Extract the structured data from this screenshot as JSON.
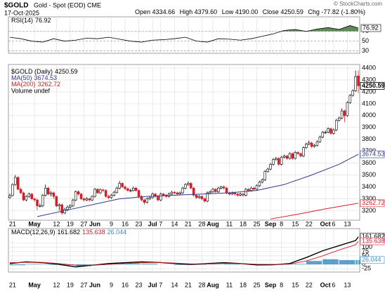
{
  "chart_data": {
    "type": "candlestick",
    "symbol": "$GOLD",
    "title": "Gold - Spot (EOD) CME",
    "date": "17-Oct-2025",
    "credit": "© StockCharts.com",
    "quote": [
      {
        "label": "Open",
        "value": "4334.66"
      },
      {
        "label": "High",
        "value": "4379.60"
      },
      {
        "label": "Low",
        "value": "4190.00"
      },
      {
        "label": "Close",
        "value": "4250.59"
      },
      {
        "label": "Chg",
        "value": "-77.82 (-1.80%)"
      }
    ],
    "price_label": "$GOLD (Daily)",
    "volume_label": "Volume undef",
    "up_color": "#000000",
    "down_color": "#d0202a",
    "xlim": [
      -0.5,
      127.5
    ],
    "xticks": [
      {
        "value": 1,
        "label": "21"
      },
      {
        "value": 9,
        "label": "May"
      },
      {
        "value": 17,
        "label": "12"
      },
      {
        "value": 22,
        "label": "19"
      },
      {
        "value": 27,
        "label": "27"
      },
      {
        "value": 31,
        "label": "Jun"
      },
      {
        "value": 37,
        "label": "9"
      },
      {
        "value": 42,
        "label": "16"
      },
      {
        "value": 47,
        "label": "23"
      },
      {
        "value": 52,
        "label": "Jul"
      },
      {
        "value": 55,
        "label": "7"
      },
      {
        "value": 60,
        "label": "14"
      },
      {
        "value": 65,
        "label": "21"
      },
      {
        "value": 70,
        "label": "28"
      },
      {
        "value": 74,
        "label": "Aug"
      },
      {
        "value": 80,
        "label": "11"
      },
      {
        "value": 85,
        "label": "18"
      },
      {
        "value": 90,
        "label": "25"
      },
      {
        "value": 95,
        "label": "Sep"
      },
      {
        "value": 99,
        "label": "8"
      },
      {
        "value": 104,
        "label": "15"
      },
      {
        "value": 109,
        "label": "22"
      },
      {
        "value": 115,
        "label": "Oct"
      },
      {
        "value": 118,
        "label": "6"
      },
      {
        "value": 123,
        "label": "13"
      }
    ],
    "ylim": [
      3120,
      4430
    ],
    "yticks": [
      3200,
      3300,
      3400,
      3500,
      3600,
      3700,
      3800,
      3900,
      4000,
      4100,
      4200,
      4300,
      4400
    ],
    "candles": [
      [
        3310,
        3345,
        3300,
        3327
      ],
      [
        3327,
        3430,
        3320,
        3420
      ],
      [
        3420,
        3500,
        3410,
        3480
      ],
      [
        3480,
        3490,
        3370,
        3380
      ],
      [
        3380,
        3395,
        3340,
        3350
      ],
      [
        3350,
        3360,
        3280,
        3290
      ],
      [
        3290,
        3330,
        3280,
        3320
      ],
      [
        3320,
        3352,
        3308,
        3340
      ],
      [
        3340,
        3350,
        3290,
        3300
      ],
      [
        3300,
        3310,
        3275,
        3290
      ],
      [
        3290,
        3300,
        3205,
        3240
      ],
      [
        3240,
        3260,
        3228,
        3240
      ],
      [
        3240,
        3340,
        3230,
        3330
      ],
      [
        3330,
        3420,
        3320,
        3390
      ],
      [
        3390,
        3400,
        3330,
        3340
      ],
      [
        3340,
        3365,
        3320,
        3350
      ],
      [
        3350,
        3360,
        3300,
        3320
      ],
      [
        3320,
        3325,
        3230,
        3240
      ],
      [
        3240,
        3262,
        3200,
        3250
      ],
      [
        3250,
        3260,
        3165,
        3180
      ],
      [
        3180,
        3225,
        3170,
        3210
      ],
      [
        3210,
        3245,
        3195,
        3230
      ],
      [
        3230,
        3255,
        3215,
        3240
      ],
      [
        3240,
        3300,
        3230,
        3290
      ],
      [
        3290,
        3370,
        3280,
        3360
      ],
      [
        3360,
        3372,
        3325,
        3340
      ],
      [
        3340,
        3350,
        3290,
        3300
      ],
      [
        3300,
        3312,
        3278,
        3290
      ],
      [
        3290,
        3315,
        3280,
        3300
      ],
      [
        3300,
        3310,
        3275,
        3290
      ],
      [
        3290,
        3330,
        3280,
        3320
      ],
      [
        3320,
        3392,
        3310,
        3380
      ],
      [
        3380,
        3390,
        3340,
        3350
      ],
      [
        3350,
        3388,
        3340,
        3375
      ],
      [
        3375,
        3385,
        3355,
        3370
      ],
      [
        3370,
        3380,
        3310,
        3320
      ],
      [
        3320,
        3332,
        3298,
        3310
      ],
      [
        3310,
        3342,
        3300,
        3330
      ],
      [
        3330,
        3368,
        3320,
        3355
      ],
      [
        3355,
        3402,
        3345,
        3390
      ],
      [
        3390,
        3450,
        3380,
        3430
      ],
      [
        3430,
        3440,
        3390,
        3400
      ],
      [
        3400,
        3412,
        3372,
        3385
      ],
      [
        3385,
        3395,
        3358,
        3370
      ],
      [
        3370,
        3385,
        3355,
        3370
      ],
      [
        3370,
        3402,
        3360,
        3390
      ],
      [
        3390,
        3400,
        3358,
        3370
      ],
      [
        3370,
        3378,
        3305,
        3320
      ],
      [
        3320,
        3330,
        3278,
        3290
      ],
      [
        3290,
        3300,
        3248,
        3270
      ],
      [
        3270,
        3312,
        3260,
        3300
      ],
      [
        3300,
        3322,
        3288,
        3310
      ],
      [
        3310,
        3352,
        3300,
        3340
      ],
      [
        3340,
        3350,
        3308,
        3320
      ],
      [
        3320,
        3330,
        3278,
        3290
      ],
      [
        3290,
        3352,
        3280,
        3340
      ],
      [
        3340,
        3350,
        3318,
        3330
      ],
      [
        3330,
        3340,
        3308,
        3320
      ],
      [
        3320,
        3352,
        3310,
        3340
      ],
      [
        3340,
        3368,
        3330,
        3355
      ],
      [
        3355,
        3365,
        3338,
        3350
      ],
      [
        3350,
        3360,
        3328,
        3340
      ],
      [
        3340,
        3362,
        3330,
        3350
      ],
      [
        3350,
        3402,
        3340,
        3390
      ],
      [
        3390,
        3432,
        3380,
        3420
      ],
      [
        3420,
        3445,
        3410,
        3430
      ],
      [
        3430,
        3440,
        3380,
        3390
      ],
      [
        3390,
        3400,
        3318,
        3330
      ],
      [
        3330,
        3340,
        3298,
        3310
      ],
      [
        3310,
        3332,
        3300,
        3320
      ],
      [
        3320,
        3330,
        3288,
        3300
      ],
      [
        3300,
        3310,
        3268,
        3280
      ],
      [
        3280,
        3362,
        3270,
        3350
      ],
      [
        3350,
        3372,
        3340,
        3360
      ],
      [
        3360,
        3392,
        3350,
        3380
      ],
      [
        3380,
        3390,
        3348,
        3360
      ],
      [
        3360,
        3402,
        3350,
        3390
      ],
      [
        3390,
        3410,
        3380,
        3400
      ],
      [
        3400,
        3412,
        3378,
        3390
      ],
      [
        3390,
        3400,
        3338,
        3350
      ],
      [
        3350,
        3360,
        3328,
        3340
      ],
      [
        3340,
        3362,
        3330,
        3350
      ],
      [
        3350,
        3360,
        3328,
        3340
      ],
      [
        3340,
        3350,
        3318,
        3330
      ],
      [
        3330,
        3352,
        3320,
        3340
      ],
      [
        3340,
        3350,
        3318,
        3330
      ],
      [
        3330,
        3392,
        3320,
        3380
      ],
      [
        3380,
        3390,
        3358,
        3370
      ],
      [
        3370,
        3402,
        3360,
        3390
      ],
      [
        3390,
        3400,
        3368,
        3380
      ],
      [
        3380,
        3422,
        3370,
        3410
      ],
      [
        3410,
        3452,
        3400,
        3440
      ],
      [
        3440,
        3472,
        3430,
        3460
      ],
      [
        3460,
        3542,
        3450,
        3530
      ],
      [
        3530,
        3562,
        3520,
        3550
      ],
      [
        3550,
        3602,
        3540,
        3590
      ],
      [
        3590,
        3642,
        3580,
        3630
      ],
      [
        3630,
        3652,
        3620,
        3640
      ],
      [
        3640,
        3650,
        3578,
        3590
      ],
      [
        3590,
        3662,
        3580,
        3650
      ],
      [
        3650,
        3672,
        3640,
        3660
      ],
      [
        3660,
        3670,
        3628,
        3640
      ],
      [
        3640,
        3692,
        3630,
        3680
      ],
      [
        3680,
        3690,
        3628,
        3640
      ],
      [
        3640,
        3702,
        3630,
        3690
      ],
      [
        3690,
        3700,
        3668,
        3680
      ],
      [
        3680,
        3690,
        3648,
        3660
      ],
      [
        3660,
        3742,
        3650,
        3730
      ],
      [
        3730,
        3772,
        3720,
        3760
      ],
      [
        3760,
        3790,
        3750,
        3770
      ],
      [
        3770,
        3780,
        3728,
        3740
      ],
      [
        3740,
        3762,
        3730,
        3750
      ],
      [
        3750,
        3792,
        3740,
        3780
      ],
      [
        3780,
        3832,
        3770,
        3820
      ],
      [
        3820,
        3872,
        3810,
        3860
      ],
      [
        3860,
        3875,
        3845,
        3860
      ],
      [
        3860,
        3902,
        3850,
        3890
      ],
      [
        3890,
        3900,
        3838,
        3850
      ],
      [
        3850,
        3892,
        3840,
        3880
      ],
      [
        3880,
        3972,
        3870,
        3960
      ],
      [
        3960,
        3992,
        3950,
        3980
      ],
      [
        3980,
        4060,
        3970,
        4040
      ],
      [
        4040,
        4050,
        3945,
        4000
      ],
      [
        4000,
        4122,
        3990,
        4110
      ],
      [
        4110,
        4182,
        4100,
        4170
      ],
      [
        4170,
        4222,
        4160,
        4210
      ],
      [
        4210,
        4380,
        4200,
        4328.41
      ],
      [
        4334.66,
        4379.6,
        4190,
        4250.59
      ]
    ],
    "series": [
      {
        "name": "MA(50)",
        "color": "#2e3a8c",
        "x": [
          10,
          20,
          30,
          40,
          50,
          60,
          70,
          80,
          90,
          100,
          110,
          120,
          127
        ],
        "values": [
          3150,
          3200,
          3250,
          3300,
          3320,
          3330,
          3340,
          3350,
          3370,
          3420,
          3500,
          3590,
          3674.53
        ]
      },
      {
        "name": "MA(200)",
        "color": "#d0202a",
        "x": [
          95,
          105,
          115,
          127
        ],
        "values": [
          3130,
          3170,
          3215,
          3262.72
        ]
      }
    ],
    "rsi": {
      "name": "RSI(14)",
      "color": "#000000",
      "fill": "#5e8a58",
      "ylim": [
        25,
        100
      ],
      "yticks": [
        30,
        50,
        70
      ],
      "threshold": 70,
      "x": [
        0,
        4,
        8,
        12,
        16,
        20,
        24,
        28,
        32,
        36,
        40,
        44,
        48,
        52,
        56,
        60,
        64,
        68,
        72,
        76,
        80,
        84,
        88,
        92,
        96,
        100,
        104,
        108,
        112,
        116,
        120,
        124,
        127
      ],
      "values": [
        58,
        55,
        50,
        48,
        55,
        50,
        52,
        56,
        55,
        58,
        54,
        50,
        48,
        52,
        53,
        55,
        58,
        50,
        48,
        55,
        54,
        52,
        55,
        60,
        65,
        72,
        74,
        70,
        75,
        78,
        74,
        82,
        76.92
      ]
    },
    "macd": {
      "name": "MACD(12,26,9)",
      "ylim": [
        -45,
        210
      ],
      "yticks": [
        -25,
        0,
        25,
        50,
        75,
        100,
        125
      ],
      "x": [
        0,
        6,
        12,
        18,
        24,
        30,
        36,
        42,
        48,
        54,
        60,
        66,
        72,
        78,
        84,
        90,
        96,
        102,
        108,
        114,
        120,
        126,
        127
      ],
      "series": [
        {
          "color": "#000000",
          "values": [
            5,
            15,
            10,
            0,
            -15,
            -5,
            5,
            10,
            15,
            12,
            5,
            0,
            5,
            10,
            5,
            -3,
            -2,
            5,
            40,
            80,
            110,
            140,
            161.682
          ]
        },
        {
          "color": "#d0202a",
          "values": [
            10,
            12,
            12,
            5,
            -5,
            -5,
            0,
            5,
            10,
            12,
            8,
            3,
            3,
            6,
            5,
            1,
            0,
            2,
            20,
            50,
            85,
            115,
            135.638
          ]
        },
        {
          "color": "#3d8fc4",
          "values": [
            -5,
            3,
            -2,
            -5,
            -10,
            0,
            5,
            5,
            5,
            0,
            -3,
            -3,
            2,
            4,
            0,
            -4,
            -2,
            3,
            20,
            30,
            25,
            25,
            26.044
          ]
        }
      ]
    }
  }
}
